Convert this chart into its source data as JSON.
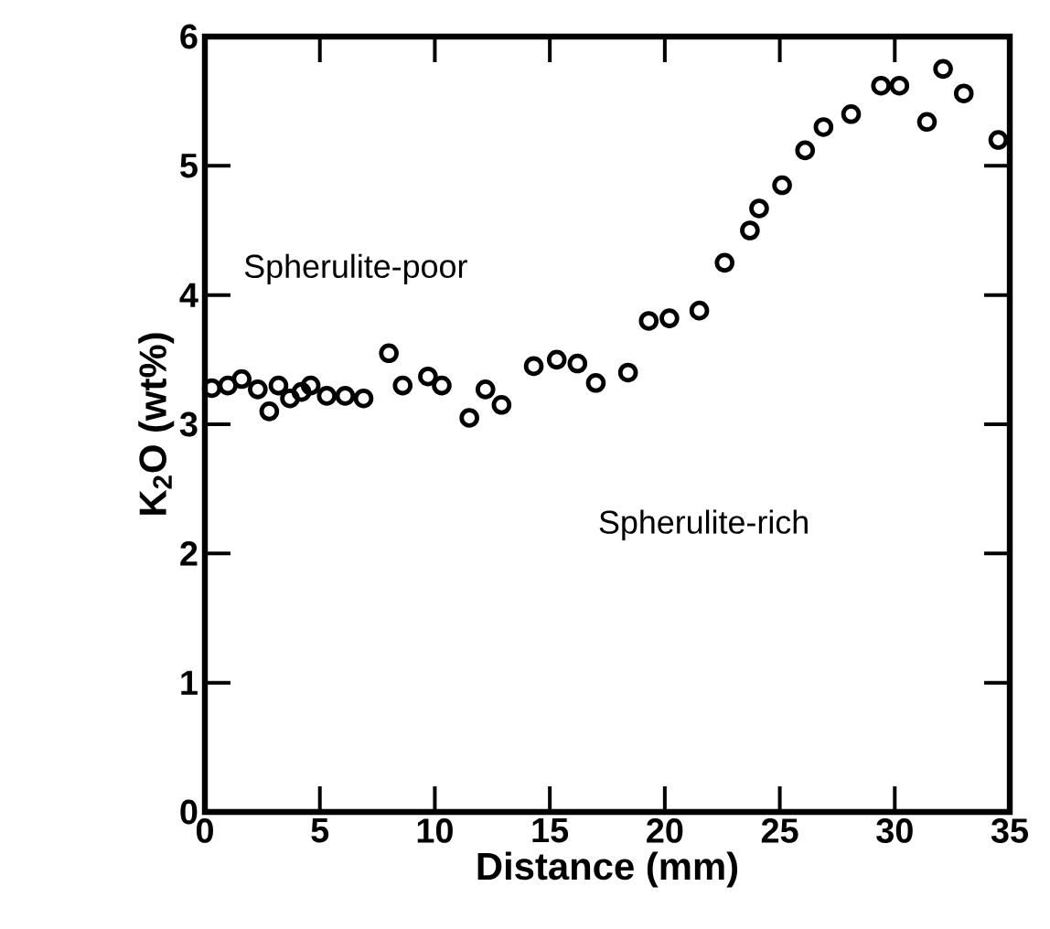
{
  "chart_data": {
    "type": "scatter",
    "xlabel": "Distance (mm)",
    "ylabel": "K$_{2}$O (wt%)",
    "xlim": [
      0,
      35
    ],
    "ylim": [
      0,
      6
    ],
    "xticks": [
      0,
      5,
      10,
      15,
      20,
      25,
      30,
      35
    ],
    "yticks": [
      0,
      1,
      2,
      3,
      4,
      5,
      6
    ],
    "marker": "circle",
    "grid": false,
    "annotations": [
      "Spherulite-poor",
      "Spherulite-rich"
    ],
    "series": [
      {
        "color": "#000000",
        "x": [
          0.3,
          1,
          1.6,
          2.3,
          2.8,
          3.2,
          3.7,
          4.2,
          4.6,
          5.3,
          6.1,
          6.9,
          8,
          8.6,
          9.7,
          10.3,
          11.5,
          12.2,
          12.9,
          14.3,
          15.3,
          16.2,
          17,
          18.4,
          19.3,
          20.2,
          21.5,
          22.6,
          23.7,
          24.1,
          25.1,
          26.1,
          26.9,
          28.1,
          29.4,
          30.2,
          31.4,
          32.1,
          33,
          34.5
        ],
        "values": [
          3.28,
          3.3,
          3.35,
          3.27,
          3.1,
          3.3,
          3.2,
          3.25,
          3.3,
          3.22,
          3.22,
          3.2,
          3.55,
          3.3,
          3.37,
          3.3,
          3.05,
          3.27,
          3.15,
          3.45,
          3.5,
          3.47,
          3.32,
          3.4,
          3.8,
          3.82,
          3.88,
          4.25,
          4.5,
          4.67,
          4.85,
          5.12,
          5.3,
          5.4,
          5.62,
          5.62,
          5.34,
          5.75,
          5.56,
          5.2
        ]
      }
    ]
  }
}
